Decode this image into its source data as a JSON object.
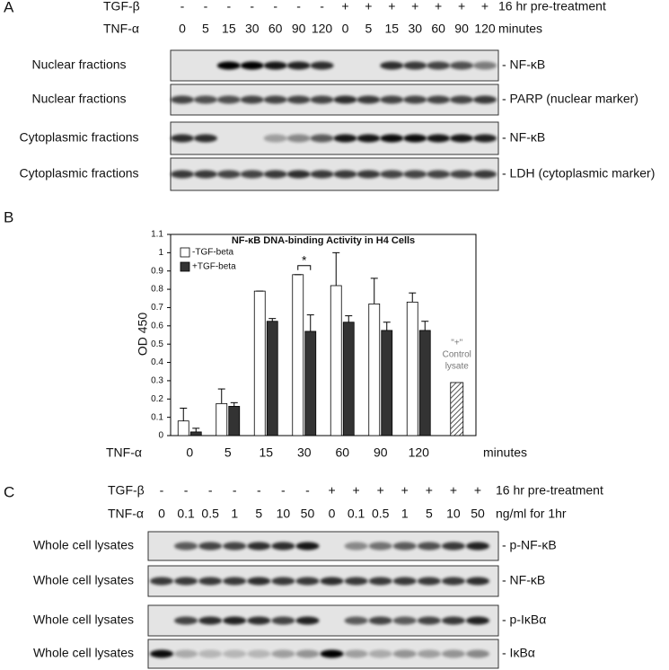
{
  "panel_a": {
    "letter": "A",
    "pretreatment_label": "TGF-β",
    "pretreatment": [
      "-",
      "-",
      "-",
      "-",
      "-",
      "-",
      "-",
      "+",
      "+",
      "+",
      "+",
      "+",
      "+",
      "+"
    ],
    "pretreatment_note": "16 hr pre-treatment",
    "treatment_label": "TNF-α",
    "treatment": [
      "0",
      "5",
      "15",
      "30",
      "60",
      "90",
      "120",
      "0",
      "5",
      "15",
      "30",
      "60",
      "90",
      "120"
    ],
    "treatment_unit": "minutes",
    "blots": [
      {
        "sample": "Nuclear fractions",
        "target": "- NF-κB"
      },
      {
        "sample": "Nuclear fractions",
        "target": "- PARP (nuclear marker)"
      },
      {
        "sample": "Cytoplasmic fractions",
        "target": "- NF-κB"
      },
      {
        "sample": "Cytoplasmic fractions",
        "target": "- LDH (cytoplasmic marker)"
      }
    ]
  },
  "chart_data": {
    "type": "bar",
    "letter": "B",
    "title": "NF-κB DNA-binding Activity in H4 Cells",
    "y_label": "OD 450",
    "x_label": "TNF-α",
    "x_unit": "minutes",
    "categories": [
      "0",
      "5",
      "15",
      "30",
      "60",
      "90",
      "120",
      null
    ],
    "series": [
      {
        "name": "-TGF-beta",
        "color": "#ffffff",
        "values": [
          0.08,
          0.175,
          0.79,
          0.88,
          0.82,
          0.72,
          0.73,
          null
        ],
        "errors": [
          0.07,
          0.08,
          0.0,
          0.0,
          0.18,
          0.14,
          0.05,
          null
        ]
      },
      {
        "name": "+TGF-beta",
        "color": "#333333",
        "values": [
          0.02,
          0.16,
          0.625,
          0.57,
          0.62,
          0.575,
          0.575,
          null
        ],
        "errors": [
          0.02,
          0.02,
          0.015,
          0.09,
          0.035,
          0.045,
          0.05,
          null
        ]
      }
    ],
    "control": {
      "label_lines": [
        "\"+\"",
        "Control",
        "lysate"
      ],
      "value": 0.29
    },
    "significance": "*",
    "ylim": [
      0,
      1.1
    ],
    "yticks": [
      0,
      0.1,
      0.2,
      0.3,
      0.4,
      0.5,
      0.6,
      0.7,
      0.8,
      0.9,
      1,
      1.1
    ],
    "legend": "upper left",
    "grid": false
  },
  "panel_c": {
    "letter": "C",
    "pretreatment_label": "TGF-β",
    "pretreatment": [
      "-",
      "-",
      "-",
      "-",
      "-",
      "-",
      "-",
      "+",
      "+",
      "+",
      "+",
      "+",
      "+",
      "+"
    ],
    "pretreatment_note": "16 hr pre-treatment",
    "treatment_label": "TNF-α",
    "treatment": [
      "0",
      "0.1",
      "0.5",
      "1",
      "5",
      "10",
      "50",
      "0",
      "0.1",
      "0.5",
      "1",
      "5",
      "10",
      "50"
    ],
    "treatment_unit": "ng/ml for 1hr",
    "blots": [
      {
        "sample": "Whole cell lysates",
        "target": "- p-NF-κB"
      },
      {
        "sample": "Whole cell lysates",
        "target": "- NF-κB"
      },
      {
        "sample": "Whole cell lysates",
        "target": "- p-IκBα"
      },
      {
        "sample": "Whole cell lysates",
        "target": "- IκBα"
      }
    ]
  }
}
